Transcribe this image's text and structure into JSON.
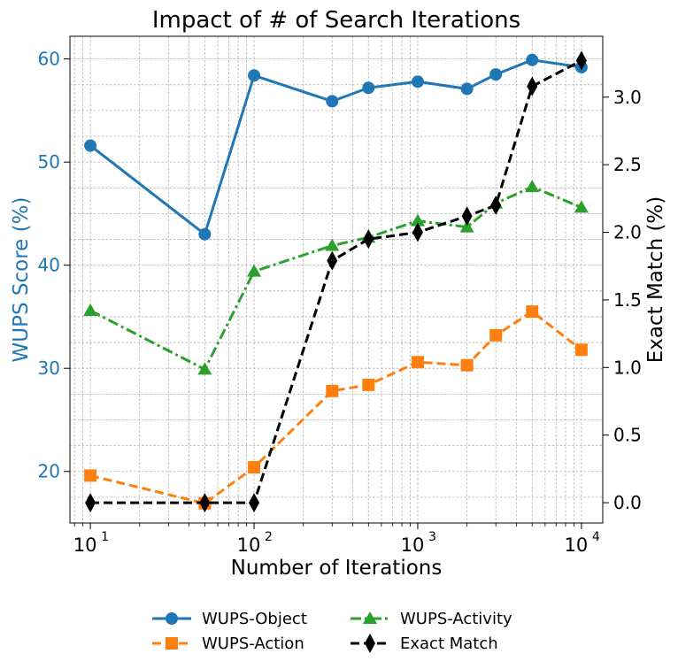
{
  "chart_data": {
    "type": "line",
    "title": "Impact of # of Search Iterations",
    "xlabel": "Number of Iterations",
    "ylabel_left": "WUPS Score (%)",
    "ylabel_right": "Exact Match (%)",
    "x_scale": "log",
    "xlim": [
      7.5,
      13500
    ],
    "ylim_left": [
      15,
      62.2
    ],
    "ylim_right": [
      -0.15,
      3.45
    ],
    "x_ticks": [
      10,
      100,
      1000,
      10000
    ],
    "x_tick_labels": [
      {
        "base": "10",
        "exp": "1"
      },
      {
        "base": "10",
        "exp": "2"
      },
      {
        "base": "10",
        "exp": "3"
      },
      {
        "base": "10",
        "exp": "4"
      }
    ],
    "y_left_ticks": [
      20,
      30,
      40,
      50,
      60
    ],
    "y_left_tick_labels": [
      "20",
      "30",
      "40",
      "50",
      "60"
    ],
    "y_right_ticks": [
      0,
      0.5,
      1.0,
      1.5,
      2.0,
      2.5,
      3.0
    ],
    "y_right_tick_labels": [
      "0.0",
      "0.5",
      "1.0",
      "1.5",
      "2.0",
      "2.5",
      "3.0"
    ],
    "x": [
      10,
      50,
      100,
      300,
      500,
      1000,
      2000,
      3000,
      5000,
      10000
    ],
    "grid": true,
    "legend_position": "bottom-center",
    "series": [
      {
        "name": "WUPS-Object",
        "axis": "left",
        "color": "#1f77b4",
        "marker": "circle",
        "linestyle": "solid",
        "values": [
          51.6,
          43.0,
          58.4,
          55.9,
          57.2,
          57.8,
          57.1,
          58.5,
          59.9,
          59.2
        ]
      },
      {
        "name": "WUPS-Action",
        "axis": "left",
        "color": "#ff7f0e",
        "marker": "square",
        "linestyle": "dashed",
        "values": [
          19.6,
          16.9,
          20.4,
          27.8,
          28.4,
          30.6,
          30.3,
          33.2,
          35.5,
          31.8
        ]
      },
      {
        "name": "WUPS-Activity",
        "axis": "left",
        "color": "#2ca02c",
        "marker": "triangle",
        "linestyle": "dashdot",
        "values": [
          35.6,
          29.9,
          39.4,
          41.9,
          42.7,
          44.3,
          43.7,
          46.0,
          47.6,
          45.6
        ]
      },
      {
        "name": "Exact Match",
        "axis": "right",
        "color": "#000000",
        "marker": "diamond",
        "linestyle": "dashed",
        "values": [
          0.0,
          0.0,
          0.0,
          1.79,
          1.95,
          2.0,
          2.12,
          2.2,
          3.08,
          3.27
        ]
      }
    ],
    "left_axis_color": "#1f77b4"
  }
}
